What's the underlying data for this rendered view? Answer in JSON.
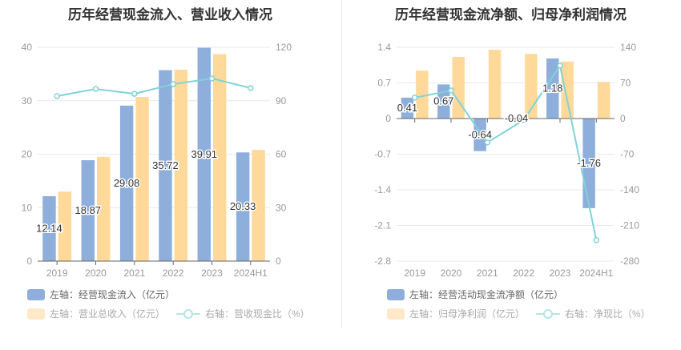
{
  "colors": {
    "bar1": "#8eaedb",
    "bar2": "#ffd99a",
    "line": "#7fd3d6",
    "legend_bar2": "#fde9c8",
    "grid": "#e6e9ef",
    "axis_text": "#999"
  },
  "chart_data": [
    {
      "type": "bar+line",
      "title": "历年经营现金流入、营业收入情况",
      "categories": [
        "2019",
        "2020",
        "2021",
        "2022",
        "2023",
        "2024H1"
      ],
      "left_axis": {
        "range": [
          0,
          40
        ],
        "ticks": [
          0,
          10,
          20,
          30,
          40
        ]
      },
      "right_axis": {
        "range": [
          0,
          120
        ],
        "ticks": [
          0,
          30,
          60,
          90,
          120
        ]
      },
      "grid": true,
      "legend_placement": "bottom-left",
      "series": [
        {
          "name": "左轴：经营现金流入（亿元）",
          "type": "bar",
          "axis": "left",
          "values": [
            12.14,
            18.87,
            29.08,
            35.72,
            39.91,
            20.33
          ],
          "labels": [
            "12.14",
            "18.87",
            "29.08",
            "35.72",
            "39.91",
            "20.33"
          ]
        },
        {
          "name": "左轴：营业总收入（亿元）",
          "type": "bar",
          "axis": "left",
          "values": [
            13.0,
            19.5,
            30.7,
            35.8,
            38.7,
            20.8
          ]
        },
        {
          "name": "右轴：营收现金比（%）",
          "type": "line",
          "axis": "right",
          "values": [
            92.6,
            96.6,
            93.9,
            99.3,
            102.5,
            97.1
          ]
        }
      ]
    },
    {
      "type": "bar+line",
      "title": "历年经营现金流净额、归母净利润情况",
      "categories": [
        "2019",
        "2020",
        "2021",
        "2022",
        "2023",
        "2024H1"
      ],
      "left_axis": {
        "range": [
          -2.8,
          1.4
        ],
        "ticks": [
          -2.8,
          -2.1,
          -1.4,
          -0.7,
          0,
          0.7,
          1.4
        ]
      },
      "right_axis": {
        "range": [
          -280,
          140
        ],
        "ticks": [
          -280,
          -210,
          -140,
          -70,
          0,
          70,
          140
        ]
      },
      "grid": true,
      "legend_placement": "bottom-left",
      "series": [
        {
          "name": "左轴：经营活动现金流净额（亿元）",
          "type": "bar",
          "axis": "left",
          "values": [
            0.41,
            0.67,
            -0.64,
            -0.04,
            1.18,
            -1.76
          ],
          "labels": [
            "0.41",
            "0.67",
            "-0.64",
            "-0.04",
            "1.18",
            "-1.76"
          ]
        },
        {
          "name": "左轴：归母净利润（亿元）",
          "type": "bar",
          "axis": "left",
          "values": [
            0.94,
            1.21,
            1.35,
            1.27,
            1.12,
            0.72
          ]
        },
        {
          "name": "右轴：净现比（%）",
          "type": "line",
          "axis": "right",
          "values": [
            41,
            55,
            -47,
            -3,
            104,
            -239
          ]
        }
      ]
    }
  ]
}
